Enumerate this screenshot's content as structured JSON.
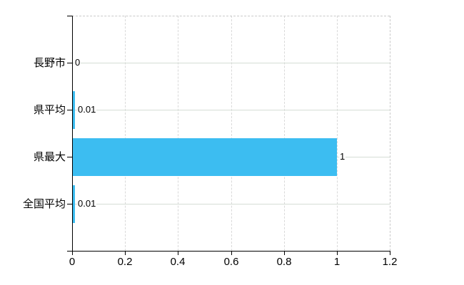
{
  "chart_data": {
    "type": "bar",
    "orientation": "horizontal",
    "title": "",
    "categories": [
      "長野市",
      "県平均",
      "県最大",
      "全国平均"
    ],
    "values": [
      0,
      0.01,
      1,
      0.01
    ],
    "value_labels": [
      "0",
      "0.01",
      "1",
      "0.01"
    ],
    "xlim": [
      0,
      1.2
    ],
    "xticks": [
      0,
      0.2,
      0.4,
      0.6,
      0.8,
      1,
      1.2
    ],
    "xtick_labels": [
      "0",
      "0.2",
      "0.4",
      "0.6",
      "0.8",
      "1",
      "1.2"
    ],
    "grid": true,
    "legend": false,
    "colors": {
      "bar": "#3cbdf1",
      "axis": "#000000",
      "h_gridline": "#d5ddd5",
      "v_gridline": "#d9d9d9",
      "plot_border": "#c9c9c9",
      "text": "#000000",
      "background": "#ffffff"
    }
  }
}
